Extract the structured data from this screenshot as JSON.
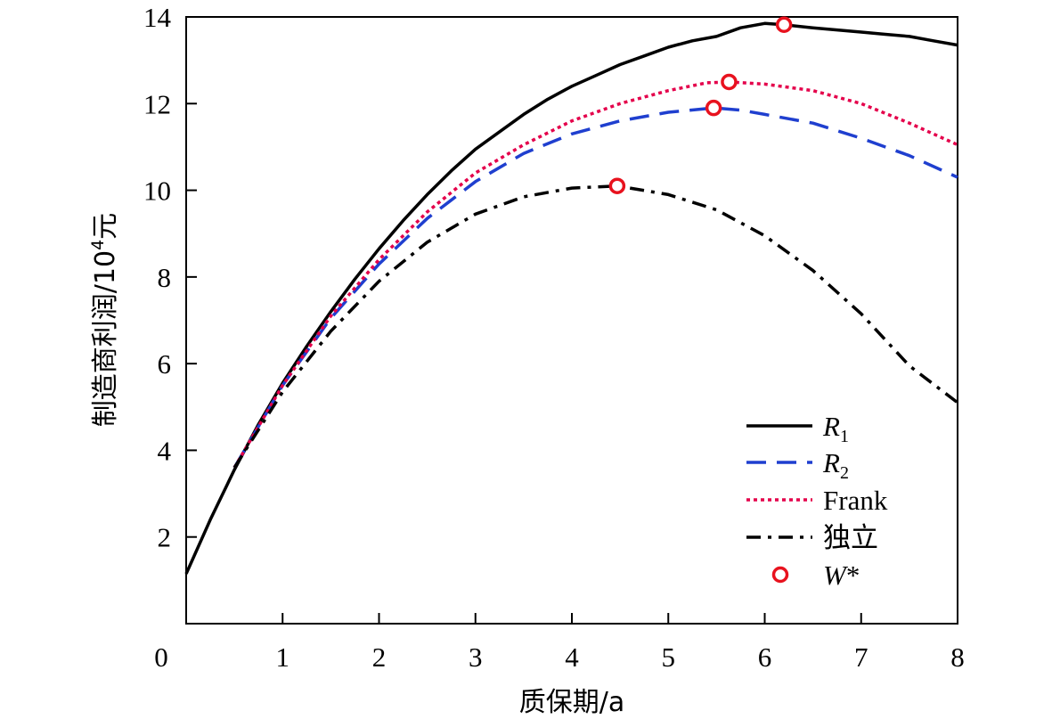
{
  "chart_data": {
    "type": "line",
    "xlabel": "质保期/a",
    "ylabel_main": "制造商利润/10",
    "ylabel_sup": "4",
    "ylabel_unit": "元",
    "xlim": [
      0,
      8
    ],
    "ylim": [
      0,
      14
    ],
    "xticks": [
      "0",
      "1",
      "2",
      "3",
      "4",
      "5",
      "6",
      "7",
      "8"
    ],
    "yticks": [
      "2",
      "4",
      "6",
      "8",
      "10",
      "12",
      "14"
    ],
    "legend_position": "lower-right",
    "series": [
      {
        "name_main": "R",
        "name_sub": "1",
        "style": "solid",
        "color": "#000000",
        "x": [
          0,
          0.25,
          0.5,
          0.75,
          1,
          1.25,
          1.5,
          1.75,
          2,
          2.25,
          2.5,
          2.75,
          3,
          3.25,
          3.5,
          3.75,
          4,
          4.25,
          4.5,
          4.75,
          5,
          5.25,
          5.5,
          5.75,
          6,
          6.2,
          6.5,
          6.75,
          7,
          7.25,
          7.5,
          7.75,
          8
        ],
        "y": [
          1.15,
          2.4,
          3.55,
          4.6,
          5.55,
          6.4,
          7.2,
          7.95,
          8.65,
          9.3,
          9.9,
          10.45,
          10.95,
          11.35,
          11.75,
          12.1,
          12.4,
          12.65,
          12.9,
          13.1,
          13.3,
          13.45,
          13.55,
          13.75,
          13.85,
          13.82,
          13.75,
          13.7,
          13.65,
          13.6,
          13.55,
          13.45,
          13.35
        ]
      },
      {
        "name_main": "R",
        "name_sub": "2",
        "style": "dashed",
        "color": "#1f3fcf",
        "x": [
          0.5,
          1,
          1.5,
          2,
          2.5,
          3,
          3.5,
          4,
          4.5,
          5,
          5.47,
          5.75,
          6,
          6.5,
          7,
          7.5,
          8
        ],
        "y": [
          3.6,
          5.5,
          7.05,
          8.3,
          9.35,
          10.2,
          10.85,
          11.3,
          11.6,
          11.8,
          11.9,
          11.85,
          11.75,
          11.55,
          11.2,
          10.8,
          10.3
        ]
      },
      {
        "name_main": "Frank",
        "name_sub": "",
        "style": "dotted",
        "color": "#e4004b",
        "x": [
          0.5,
          1,
          1.5,
          2,
          2.5,
          3,
          3.5,
          4,
          4.5,
          5,
          5.4,
          5.63,
          6,
          6.5,
          7,
          7.5,
          8
        ],
        "y": [
          3.6,
          5.5,
          7.1,
          8.4,
          9.5,
          10.4,
          11.05,
          11.6,
          12.0,
          12.3,
          12.48,
          12.5,
          12.45,
          12.3,
          12.0,
          11.55,
          11.05
        ]
      },
      {
        "name_main": "独立",
        "name_sub": "",
        "style": "dashdot",
        "color": "#000000",
        "x": [
          0.5,
          1,
          1.5,
          2,
          2.5,
          3,
          3.5,
          4,
          4.47,
          5,
          5.5,
          6,
          6.5,
          7,
          7.5,
          8
        ],
        "y": [
          3.6,
          5.35,
          6.75,
          7.9,
          8.8,
          9.45,
          9.85,
          10.05,
          10.1,
          9.9,
          9.55,
          8.95,
          8.15,
          7.15,
          5.95,
          5.1
        ]
      }
    ],
    "optimal_points": {
      "name_main": "W",
      "name_suffix": "*",
      "color": "#e8121e",
      "x": [
        6.2,
        5.63,
        5.47,
        4.47
      ],
      "y": [
        13.82,
        12.5,
        11.9,
        10.1
      ]
    }
  }
}
